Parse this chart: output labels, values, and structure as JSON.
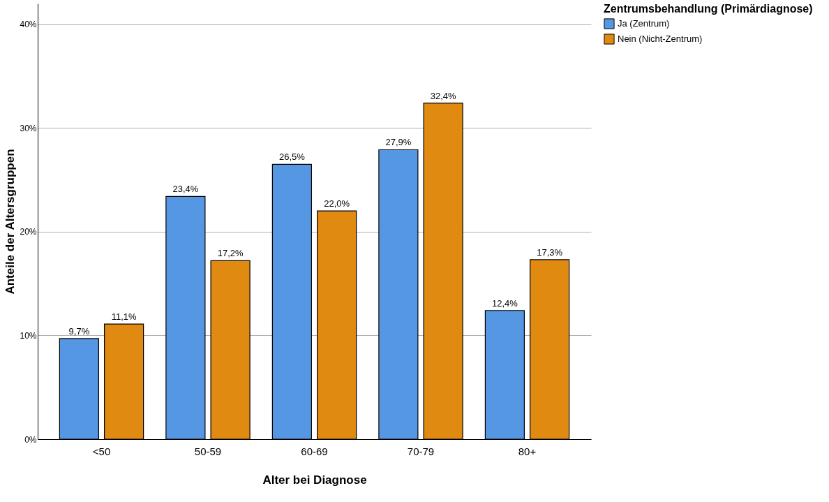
{
  "chart_data": {
    "type": "bar",
    "xlabel": "Alter bei Diagnose",
    "ylabel": "Anteile der Altersgruppen",
    "legend_title": "Zentrumsbehandlung (Primärdiagnose)",
    "categories": [
      "<50",
      "50-59",
      "60-69",
      "70-79",
      "80+"
    ],
    "series": [
      {
        "name": "Ja (Zentrum)",
        "color": "#5597e3",
        "values": [
          9.7,
          23.4,
          26.5,
          27.9,
          12.4
        ],
        "value_labels": [
          "9,7%",
          "23,4%",
          "26,5%",
          "27,9%",
          "12,4%"
        ]
      },
      {
        "name": "Nein (Nicht-Zentrum)",
        "color": "#e08a12",
        "values": [
          11.1,
          17.2,
          22.0,
          32.4,
          17.3
        ],
        "value_labels": [
          "11,1%",
          "17,2%",
          "22,0%",
          "32,4%",
          "17,3%"
        ]
      }
    ],
    "ylim": [
      0,
      42
    ],
    "yticks": [
      {
        "value": 0,
        "label": "0%"
      },
      {
        "value": 10,
        "label": "10%"
      },
      {
        "value": 20,
        "label": "20%"
      },
      {
        "value": 30,
        "label": "30%"
      },
      {
        "value": 40,
        "label": "40%"
      }
    ],
    "grid": "y",
    "legend": "top right"
  }
}
